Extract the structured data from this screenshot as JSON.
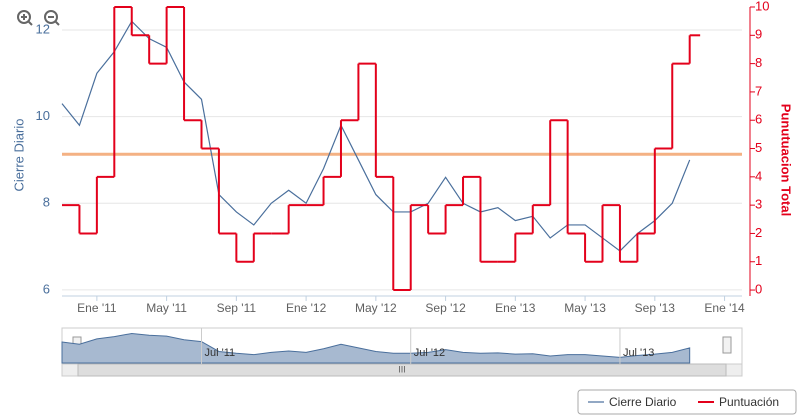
{
  "chart_data": {
    "type": "line",
    "x": [
      "2010-11",
      "2010-12",
      "2011-01",
      "2011-02",
      "2011-03",
      "2011-04",
      "2011-05",
      "2011-06",
      "2011-07",
      "2011-08",
      "2011-09",
      "2011-10",
      "2011-11",
      "2011-12",
      "2012-01",
      "2012-02",
      "2012-03",
      "2012-04",
      "2012-05",
      "2012-06",
      "2012-07",
      "2012-08",
      "2012-09",
      "2012-10",
      "2012-11",
      "2012-12",
      "2013-01",
      "2013-02",
      "2013-03",
      "2013-04",
      "2013-05",
      "2013-06",
      "2013-07",
      "2013-08",
      "2013-09",
      "2013-10",
      "2013-11"
    ],
    "xlim": [
      "2010-11",
      "2014-02"
    ],
    "xticks": [
      {
        "value": "2011-01",
        "label": "Ene '11"
      },
      {
        "value": "2011-05",
        "label": "May '11"
      },
      {
        "value": "2011-09",
        "label": "Sep '11"
      },
      {
        "value": "2012-01",
        "label": "Ene '12"
      },
      {
        "value": "2012-05",
        "label": "May '12"
      },
      {
        "value": "2012-09",
        "label": "Sep '12"
      },
      {
        "value": "2013-01",
        "label": "Ene '13"
      },
      {
        "value": "2013-05",
        "label": "May '13"
      },
      {
        "value": "2013-09",
        "label": "Sep '13"
      },
      {
        "value": "2014-01",
        "label": "Ene '14"
      }
    ],
    "ylabel": "Cierre Diario",
    "ylim": [
      5.86,
      12.53
    ],
    "yticks": [
      6,
      8,
      10,
      12
    ],
    "y2label": "Punutuacion Total",
    "y2lim": [
      -0.21,
      10
    ],
    "y2ticks": [
      0,
      1,
      2,
      3,
      4,
      5,
      6,
      7,
      8,
      9,
      10
    ],
    "grid": true,
    "reference_line": {
      "value": 4.8,
      "axis": "y2",
      "color": "#f4b183"
    },
    "series": [
      {
        "name": "Cierre Diario",
        "color": "#4a6f9c",
        "values": [
          10.3,
          9.8,
          11.0,
          11.5,
          12.2,
          11.8,
          11.6,
          10.8,
          10.4,
          8.2,
          7.8,
          7.5,
          8.0,
          8.3,
          8.0,
          8.8,
          9.8,
          9.0,
          8.2,
          7.8,
          7.8,
          8.0,
          8.6,
          8.0,
          7.8,
          7.9,
          7.6,
          7.7,
          7.2,
          7.5,
          7.5,
          7.2,
          6.9,
          7.3,
          7.6,
          8.0,
          9.0
        ]
      },
      {
        "name": "Puntuación",
        "color": "#e3001b",
        "axis": "y2",
        "values": [
          3,
          2,
          4,
          10,
          9,
          8,
          10,
          6,
          5,
          2,
          1,
          2,
          2,
          3,
          3,
          4,
          6,
          8,
          4,
          0,
          3,
          2,
          3,
          4,
          1,
          1,
          2,
          3,
          6,
          2,
          1,
          3,
          1,
          2,
          5,
          8,
          9
        ]
      }
    ],
    "navigator_ticks": [
      {
        "value": "2011-07",
        "label": "Jul '11"
      },
      {
        "value": "2012-07",
        "label": "Jul '12"
      },
      {
        "value": "2013-07",
        "label": "Jul '13"
      }
    ],
    "navigator_scrollbar": "III"
  }
}
